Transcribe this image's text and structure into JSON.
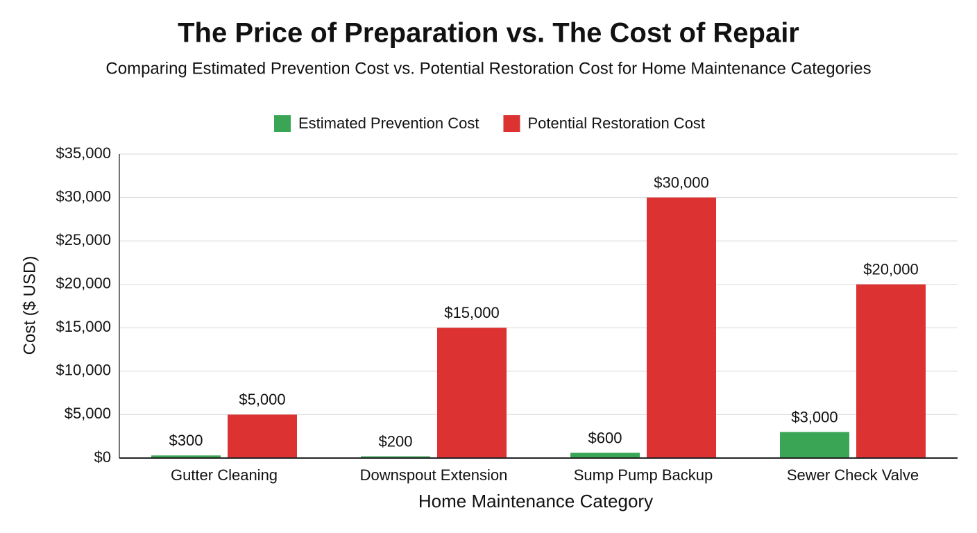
{
  "chart_data": {
    "type": "bar",
    "title": "The Price of Preparation vs. The Cost of Repair",
    "subtitle": "Comparing Estimated Prevention Cost vs. Potential Restoration Cost for Home Maintenance Categories",
    "x_label": "Home Maintenance Category",
    "y_label": "Cost ($ USD)",
    "categories": [
      "Gutter Cleaning",
      "Downspout Extension",
      "Sump Pump Backup",
      "Sewer Check Valve"
    ],
    "series": [
      {
        "name": "Estimated Prevention Cost",
        "color": "#3aa655",
        "values": [
          300,
          200,
          600,
          3000
        ],
        "value_labels": [
          "$300",
          "$200",
          "$600",
          "$3,000"
        ]
      },
      {
        "name": "Potential Restoration Cost",
        "color": "#dc3232",
        "values": [
          5000,
          15000,
          30000,
          20000
        ],
        "value_labels": [
          "$5,000",
          "$15,000",
          "$30,000",
          "$20,000"
        ]
      }
    ],
    "ylim": [
      0,
      35000
    ],
    "yticks": [
      {
        "value": 0,
        "label": "$0"
      },
      {
        "value": 5000,
        "label": "$5,000"
      },
      {
        "value": 10000,
        "label": "$10,000"
      },
      {
        "value": 15000,
        "label": "$15,000"
      },
      {
        "value": 20000,
        "label": "$20,000"
      },
      {
        "value": 25000,
        "label": "$25,000"
      },
      {
        "value": 30000,
        "label": "$30,000"
      },
      {
        "value": 35000,
        "label": "$35,000"
      }
    ],
    "grid": true,
    "legend": "top"
  }
}
